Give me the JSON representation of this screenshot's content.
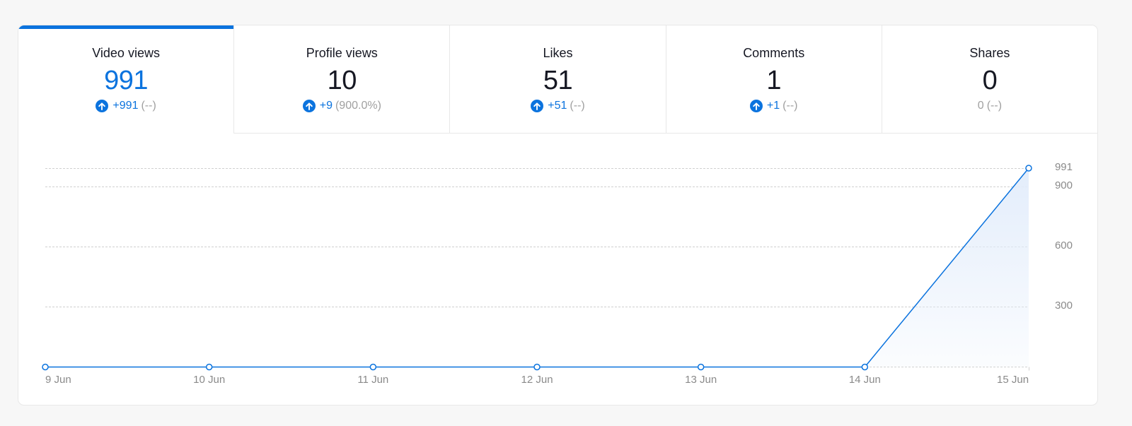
{
  "tabs": [
    {
      "label": "Video views",
      "value": "991",
      "change": "+991",
      "pct": "(--)",
      "trend": "up",
      "active": true
    },
    {
      "label": "Profile views",
      "value": "10",
      "change": "+9",
      "pct": "(900.0%)",
      "trend": "up",
      "active": false
    },
    {
      "label": "Likes",
      "value": "51",
      "change": "+51",
      "pct": "(--)",
      "trend": "up",
      "active": false
    },
    {
      "label": "Comments",
      "value": "1",
      "change": "+1",
      "pct": "(--)",
      "trend": "up",
      "active": false
    },
    {
      "label": "Shares",
      "value": "0",
      "change": "0",
      "pct": "(--)",
      "trend": "none",
      "active": false
    }
  ],
  "icons": {
    "trend_up": "arrow-up-circle-icon"
  },
  "colors": {
    "accent": "#0b73de",
    "muted": "#a0a0a0",
    "text": "#161823",
    "grid": "#d0d0d0",
    "area_top": "#e3edfb"
  },
  "chart_data": {
    "type": "area",
    "title": "Video views",
    "x": [
      "9 Jun",
      "10 Jun",
      "11 Jun",
      "12 Jun",
      "13 Jun",
      "14 Jun",
      "15 Jun"
    ],
    "series": [
      {
        "name": "Video views",
        "values": [
          0,
          0,
          0,
          0,
          0,
          0,
          991
        ]
      }
    ],
    "yticks": [
      300,
      600,
      900,
      991
    ],
    "ylim": [
      0,
      991
    ],
    "y_axis_position": "right",
    "grid": true,
    "legend": "none",
    "xlabel": "",
    "ylabel": ""
  }
}
